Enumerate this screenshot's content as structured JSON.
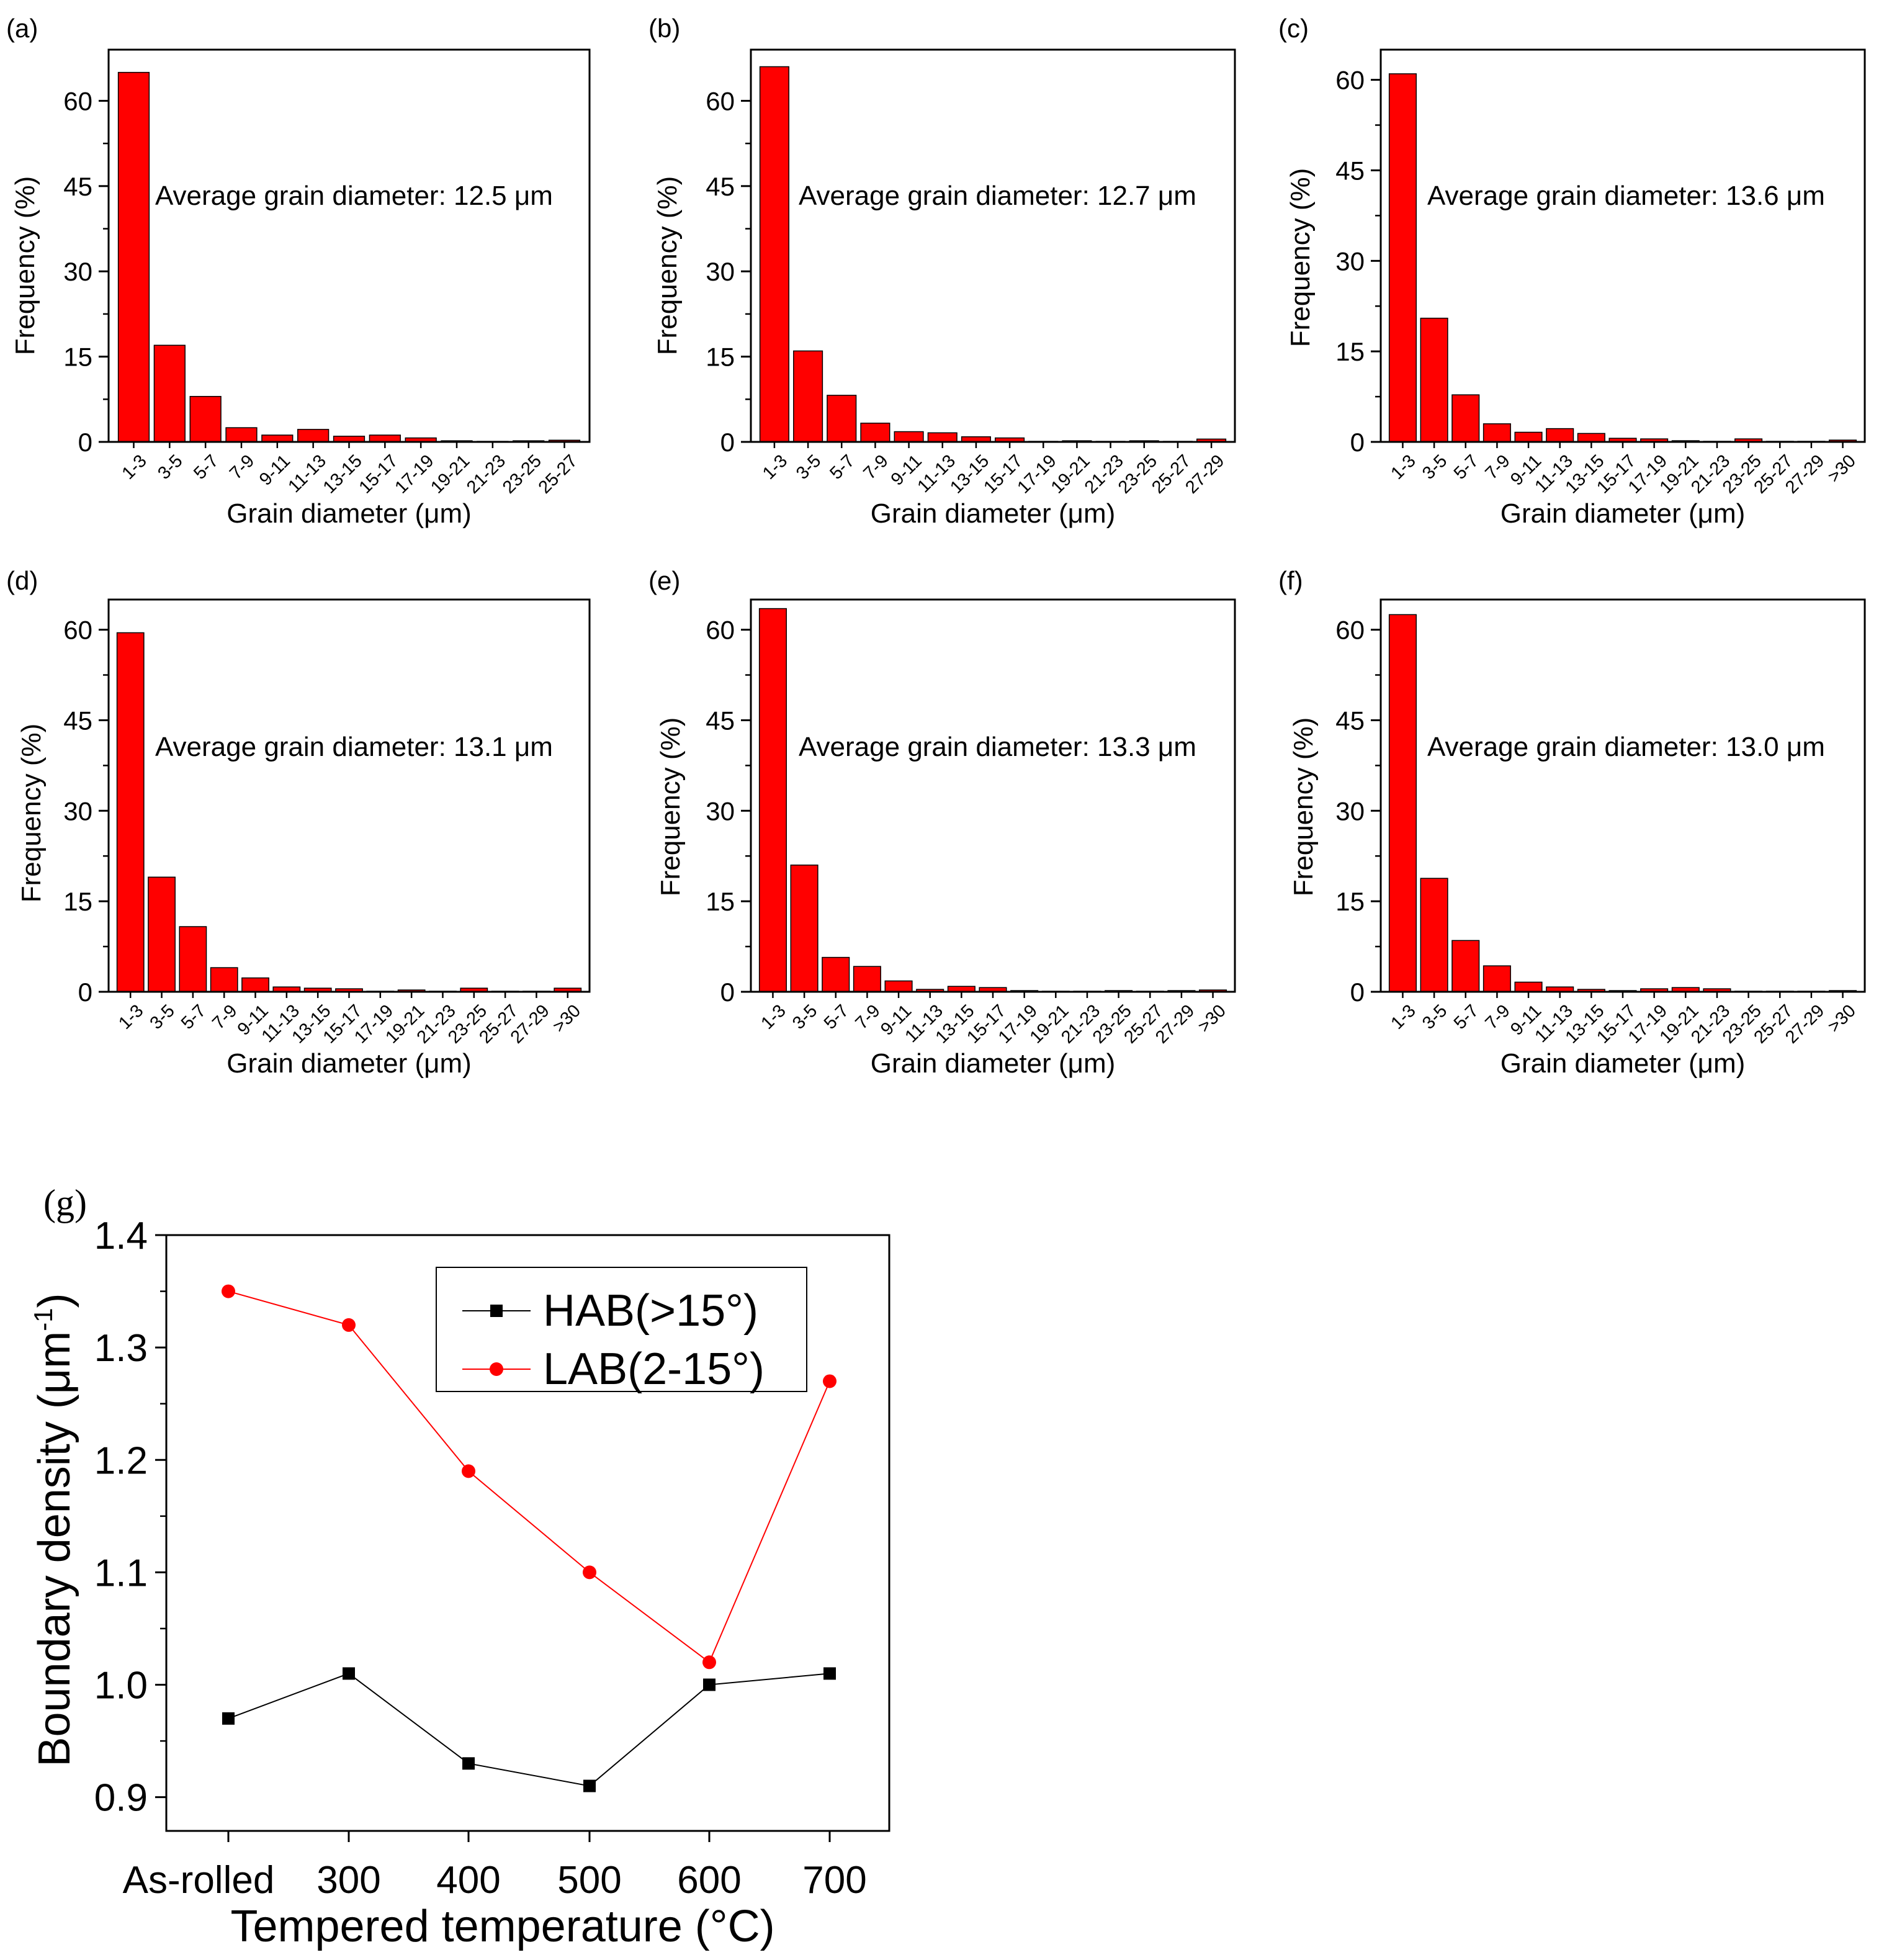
{
  "colors": {
    "bar": "#ff0000",
    "bar_stroke": "#000000",
    "hab": "#000000",
    "lab": "#ff0000"
  },
  "chart_data": [
    {
      "id": "a",
      "panel_label": "(a)",
      "type": "bar",
      "annotation": "Average grain diameter: 12.5 μm",
      "xlabel": "Grain diameter (μm)",
      "ylabel": "Frequency (%)",
      "ylim": [
        0,
        69
      ],
      "yticks": [
        0,
        15,
        30,
        45,
        60
      ],
      "categories": [
        "1-3",
        "3-5",
        "5-7",
        "7-9",
        "9-11",
        "11-13",
        "13-15",
        "15-17",
        "17-19",
        "19-21",
        "21-23",
        "23-25",
        "25-27"
      ],
      "values": [
        65,
        17,
        8,
        2.5,
        1.2,
        2.2,
        1.0,
        1.2,
        0.7,
        0.2,
        0.1,
        0.2,
        0.3
      ]
    },
    {
      "id": "b",
      "panel_label": "(b)",
      "type": "bar",
      "annotation": "Average grain diameter: 12.7 μm",
      "xlabel": "Grain diameter (μm)",
      "ylabel": "Frequency (%)",
      "ylim": [
        0,
        69
      ],
      "yticks": [
        0,
        15,
        30,
        45,
        60
      ],
      "categories": [
        "1-3",
        "3-5",
        "5-7",
        "7-9",
        "9-11",
        "11-13",
        "13-15",
        "15-17",
        "17-19",
        "19-21",
        "21-23",
        "23-25",
        "25-27",
        "27-29"
      ],
      "values": [
        66,
        16,
        8.2,
        3.3,
        1.8,
        1.6,
        0.9,
        0.7,
        0.1,
        0.2,
        0.1,
        0.2,
        0.1,
        0.5
      ]
    },
    {
      "id": "c",
      "panel_label": "(c)",
      "type": "bar",
      "annotation": "Average grain diameter: 13.6 μm",
      "xlabel": "Grain diameter (μm)",
      "ylabel": "Frequency (%)",
      "ylim": [
        0,
        65
      ],
      "yticks": [
        0,
        15,
        30,
        45,
        60
      ],
      "categories": [
        "1-3",
        "3-5",
        "5-7",
        "7-9",
        "9-11",
        "11-13",
        "13-15",
        "15-17",
        "17-19",
        "19-21",
        "21-23",
        "23-25",
        "25-27",
        "27-29",
        ">30"
      ],
      "values": [
        61,
        20.5,
        7.8,
        3.0,
        1.6,
        2.2,
        1.4,
        0.6,
        0.5,
        0.2,
        0.1,
        0.5,
        0.1,
        0.1,
        0.3
      ]
    },
    {
      "id": "d",
      "panel_label": "(d)",
      "type": "bar",
      "annotation": "Average grain diameter: 13.1 μm",
      "xlabel": "Grain diameter (μm)",
      "ylabel": "Frequency (%)",
      "ylim": [
        0,
        65
      ],
      "yticks": [
        0,
        15,
        30,
        45,
        60
      ],
      "categories": [
        "1-3",
        "3-5",
        "5-7",
        "7-9",
        "9-11",
        "11-13",
        "13-15",
        "15-17",
        "17-19",
        "19-21",
        "21-23",
        "23-25",
        "25-27",
        "27-29",
        ">30"
      ],
      "values": [
        59.5,
        19,
        10.8,
        4.0,
        2.3,
        0.8,
        0.6,
        0.5,
        0.1,
        0.3,
        0.1,
        0.6,
        0.1,
        0.1,
        0.6
      ]
    },
    {
      "id": "e",
      "panel_label": "(e)",
      "type": "bar",
      "annotation": "Average grain diameter: 13.3 μm",
      "xlabel": "Grain diameter (μm)",
      "ylabel": "Frequency (%)",
      "ylim": [
        0,
        65
      ],
      "yticks": [
        0,
        15,
        30,
        45,
        60
      ],
      "categories": [
        "1-3",
        "3-5",
        "5-7",
        "7-9",
        "9-11",
        "11-13",
        "13-15",
        "15-17",
        "17-19",
        "19-21",
        "21-23",
        "23-25",
        "25-27",
        "27-29",
        ">30"
      ],
      "values": [
        63.5,
        21,
        5.7,
        4.2,
        1.8,
        0.4,
        0.9,
        0.7,
        0.2,
        0.1,
        0.1,
        0.2,
        0.1,
        0.2,
        0.3
      ]
    },
    {
      "id": "f",
      "panel_label": "(f)",
      "type": "bar",
      "annotation": "Average grain diameter: 13.0 μm",
      "xlabel": "Grain diameter (μm)",
      "ylabel": "Frequency (%)",
      "ylim": [
        0,
        65
      ],
      "yticks": [
        0,
        15,
        30,
        45,
        60
      ],
      "categories": [
        "1-3",
        "3-5",
        "5-7",
        "7-9",
        "9-11",
        "11-13",
        "13-15",
        "15-17",
        "17-19",
        "19-21",
        "21-23",
        "23-25",
        "25-27",
        "27-29",
        ">30"
      ],
      "values": [
        62.5,
        18.8,
        8.5,
        4.3,
        1.6,
        0.8,
        0.4,
        0.2,
        0.5,
        0.7,
        0.5,
        0.1,
        0.1,
        0.1,
        0.2
      ]
    },
    {
      "id": "g",
      "panel_label": "(g)",
      "type": "line",
      "xlabel": "Tempered temperature (°C)",
      "ylabel": "Boundary density (μm",
      "ylabel_sup": "-1",
      "ylabel_end": ")",
      "ylim": [
        0.87,
        1.4
      ],
      "yticks": [
        0.9,
        1.0,
        1.1,
        1.2,
        1.3,
        1.4
      ],
      "yticklabels": [
        "0.9",
        "1.0",
        "1.1",
        "1.2",
        "1.3",
        "1.4"
      ],
      "categories": [
        "As-rolled",
        "300",
        "400",
        "500",
        "600",
        "700"
      ],
      "series": [
        {
          "name": "HAB(>15°)",
          "marker": "square",
          "color": "#000000",
          "values": [
            0.97,
            1.01,
            0.93,
            0.91,
            1.0,
            1.01
          ]
        },
        {
          "name": "LAB(2-15°)",
          "marker": "circle",
          "color": "#ff0000",
          "values": [
            1.35,
            1.32,
            1.19,
            1.1,
            1.02,
            1.27
          ]
        }
      ]
    }
  ]
}
